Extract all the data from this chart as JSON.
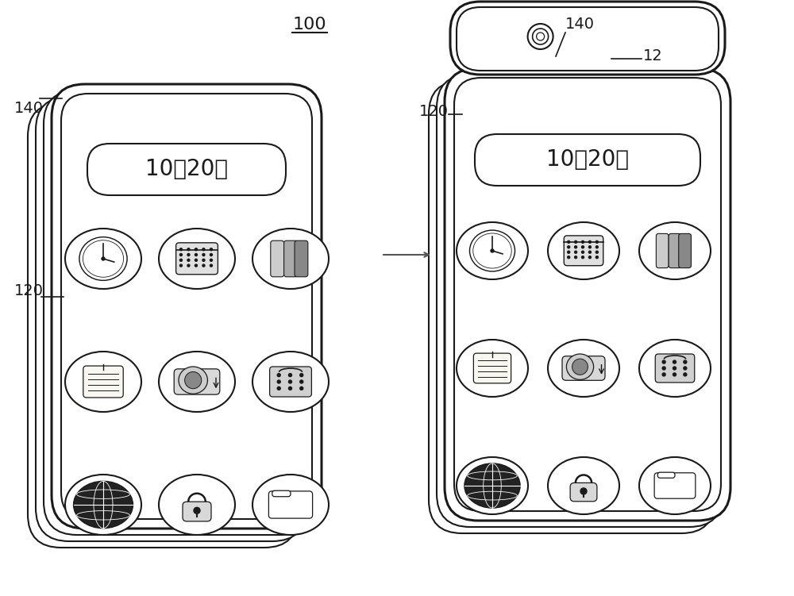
{
  "bg_color": "#ffffff",
  "line_color": "#1a1a1a",
  "text_color": "#1a1a1a",
  "arrow_color": "#555555",
  "label_100": "100",
  "label_140_left": "140",
  "label_120_left": "120",
  "label_140_right": "140",
  "label_120_right": "120",
  "label_12": "12",
  "date_text": "10月20日",
  "figsize": [
    10.0,
    7.51
  ],
  "dpi": 100
}
